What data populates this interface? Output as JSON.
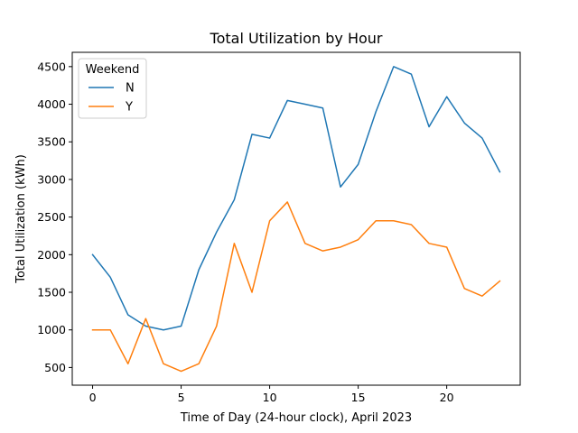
{
  "chart_data": {
    "type": "line",
    "title": "Total Utilization by Hour",
    "xlabel": "Time of Day (24-hour clock), April 2023",
    "ylabel": "Total Utilization (kWh)",
    "xlim": [
      -1.15,
      24.15
    ],
    "ylim": [
      265,
      4690
    ],
    "xticks": [
      0,
      5,
      10,
      15,
      20
    ],
    "yticks": [
      500,
      1000,
      1500,
      2000,
      2500,
      3000,
      3500,
      4000,
      4500
    ],
    "grid": false,
    "legend": {
      "title": "Weekend",
      "placement": "top-left"
    },
    "x": [
      0,
      1,
      2,
      3,
      4,
      5,
      6,
      7,
      8,
      9,
      10,
      11,
      12,
      13,
      14,
      15,
      16,
      17,
      18,
      19,
      20,
      21,
      22,
      23
    ],
    "series": [
      {
        "name": "N",
        "color": "#1f77b4",
        "values": [
          2000,
          1700,
          1200,
          1050,
          1000,
          1050,
          1800,
          2300,
          2730,
          3600,
          3550,
          4050,
          4000,
          3950,
          2900,
          3200,
          3900,
          4500,
          4400,
          3700,
          4100,
          3750,
          3550,
          3100
        ]
      },
      {
        "name": "Y",
        "color": "#ff7f0e",
        "values": [
          1000,
          1000,
          550,
          1150,
          550,
          450,
          550,
          1050,
          2150,
          1500,
          2450,
          2700,
          2150,
          2050,
          2100,
          2200,
          2450,
          2450,
          2400,
          2150,
          2100,
          1550,
          1450,
          1650
        ]
      }
    ]
  }
}
